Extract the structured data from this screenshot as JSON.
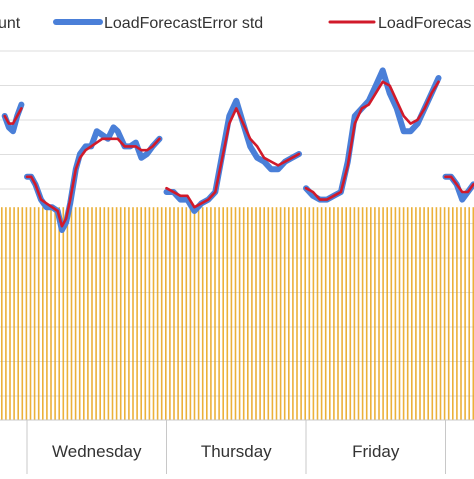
{
  "chart_data": {
    "type": "line",
    "legend": {
      "placement": "top",
      "entries": [
        {
          "label": "unt",
          "color": "#E8A317",
          "style": "bars"
        },
        {
          "label": "LoadForecastError std",
          "color": "#4A7FD8",
          "style": "line"
        },
        {
          "label": "LoadForecas",
          "color": "#D11A2A",
          "style": "line"
        }
      ]
    },
    "categories": [
      "Wednesday",
      "Thursday",
      "Friday"
    ],
    "grid": true,
    "y_range": [
      0,
      1
    ],
    "bar_level": 0.56,
    "series": [
      {
        "name": "LoadForecastError std",
        "color": "#4A7FD8",
        "segments": [
          {
            "x": [
              -0.16,
              -0.13,
              -0.1,
              -0.07,
              -0.04
            ],
            "y": [
              0.8,
              0.77,
              0.76,
              0.8,
              0.83
            ]
          },
          {
            "x": [
              0.0,
              0.03,
              0.06,
              0.1,
              0.14,
              0.18,
              0.22,
              0.25,
              0.28,
              0.31,
              0.35,
              0.38,
              0.42,
              0.46,
              0.5,
              0.54,
              0.58,
              0.62,
              0.65,
              0.7,
              0.74,
              0.78,
              0.82,
              0.86,
              0.9,
              0.95
            ],
            "y": [
              0.64,
              0.64,
              0.62,
              0.58,
              0.56,
              0.56,
              0.55,
              0.5,
              0.52,
              0.57,
              0.66,
              0.7,
              0.72,
              0.72,
              0.76,
              0.75,
              0.74,
              0.77,
              0.76,
              0.72,
              0.72,
              0.73,
              0.69,
              0.7,
              0.72,
              0.74
            ]
          },
          {
            "x": [
              1.0,
              1.05,
              1.1,
              1.15,
              1.2,
              1.25,
              1.3,
              1.35,
              1.4,
              1.45,
              1.5,
              1.55,
              1.6,
              1.65,
              1.7,
              1.75,
              1.8,
              1.85,
              1.9,
              1.95
            ],
            "y": [
              0.6,
              0.6,
              0.58,
              0.58,
              0.55,
              0.57,
              0.58,
              0.6,
              0.7,
              0.8,
              0.84,
              0.78,
              0.72,
              0.69,
              0.68,
              0.66,
              0.66,
              0.68,
              0.69,
              0.7
            ]
          },
          {
            "x": [
              2.0,
              2.05,
              2.1,
              2.15,
              2.2,
              2.25,
              2.3,
              2.35,
              2.4,
              2.45,
              2.5,
              2.55,
              2.6,
              2.65,
              2.7,
              2.75,
              2.8,
              2.85,
              2.9,
              2.95
            ],
            "y": [
              0.61,
              0.59,
              0.58,
              0.58,
              0.59,
              0.6,
              0.68,
              0.8,
              0.82,
              0.84,
              0.88,
              0.92,
              0.86,
              0.82,
              0.76,
              0.76,
              0.78,
              0.82,
              0.86,
              0.9
            ]
          },
          {
            "x": [
              3.0,
              3.04,
              3.08,
              3.12,
              3.16,
              3.2
            ],
            "y": [
              0.64,
              0.64,
              0.62,
              0.58,
              0.6,
              0.62
            ]
          }
        ]
      },
      {
        "name": "LoadForecas",
        "color": "#D11A2A",
        "segments": [
          {
            "x": [
              -0.16,
              -0.13,
              -0.1,
              -0.07,
              -0.04
            ],
            "y": [
              0.8,
              0.78,
              0.78,
              0.8,
              0.82
            ]
          },
          {
            "x": [
              0.0,
              0.03,
              0.06,
              0.1,
              0.14,
              0.18,
              0.22,
              0.25,
              0.28,
              0.31,
              0.35,
              0.38,
              0.42,
              0.46,
              0.5,
              0.54,
              0.58,
              0.62,
              0.65,
              0.7,
              0.74,
              0.78,
              0.82,
              0.86,
              0.9,
              0.95
            ],
            "y": [
              0.64,
              0.64,
              0.62,
              0.58,
              0.57,
              0.56,
              0.55,
              0.51,
              0.53,
              0.58,
              0.66,
              0.69,
              0.71,
              0.72,
              0.73,
              0.74,
              0.74,
              0.74,
              0.74,
              0.72,
              0.72,
              0.72,
              0.71,
              0.71,
              0.72,
              0.74
            ]
          },
          {
            "x": [
              1.0,
              1.05,
              1.1,
              1.15,
              1.2,
              1.25,
              1.3,
              1.35,
              1.4,
              1.45,
              1.5,
              1.55,
              1.6,
              1.65,
              1.7,
              1.75,
              1.8,
              1.85,
              1.9,
              1.95
            ],
            "y": [
              0.61,
              0.6,
              0.59,
              0.59,
              0.56,
              0.57,
              0.58,
              0.6,
              0.69,
              0.78,
              0.82,
              0.78,
              0.74,
              0.72,
              0.69,
              0.68,
              0.67,
              0.68,
              0.69,
              0.7
            ]
          },
          {
            "x": [
              2.0,
              2.05,
              2.1,
              2.15,
              2.2,
              2.25,
              2.3,
              2.35,
              2.4,
              2.45,
              2.5,
              2.55,
              2.6,
              2.65,
              2.7,
              2.75,
              2.8,
              2.85,
              2.9,
              2.95
            ],
            "y": [
              0.61,
              0.6,
              0.58,
              0.58,
              0.59,
              0.6,
              0.67,
              0.78,
              0.82,
              0.83,
              0.86,
              0.89,
              0.88,
              0.84,
              0.8,
              0.78,
              0.79,
              0.82,
              0.86,
              0.89
            ]
          },
          {
            "x": [
              3.0,
              3.04,
              3.08,
              3.12,
              3.16,
              3.2
            ],
            "y": [
              0.64,
              0.64,
              0.62,
              0.6,
              0.6,
              0.62
            ]
          }
        ]
      }
    ]
  }
}
